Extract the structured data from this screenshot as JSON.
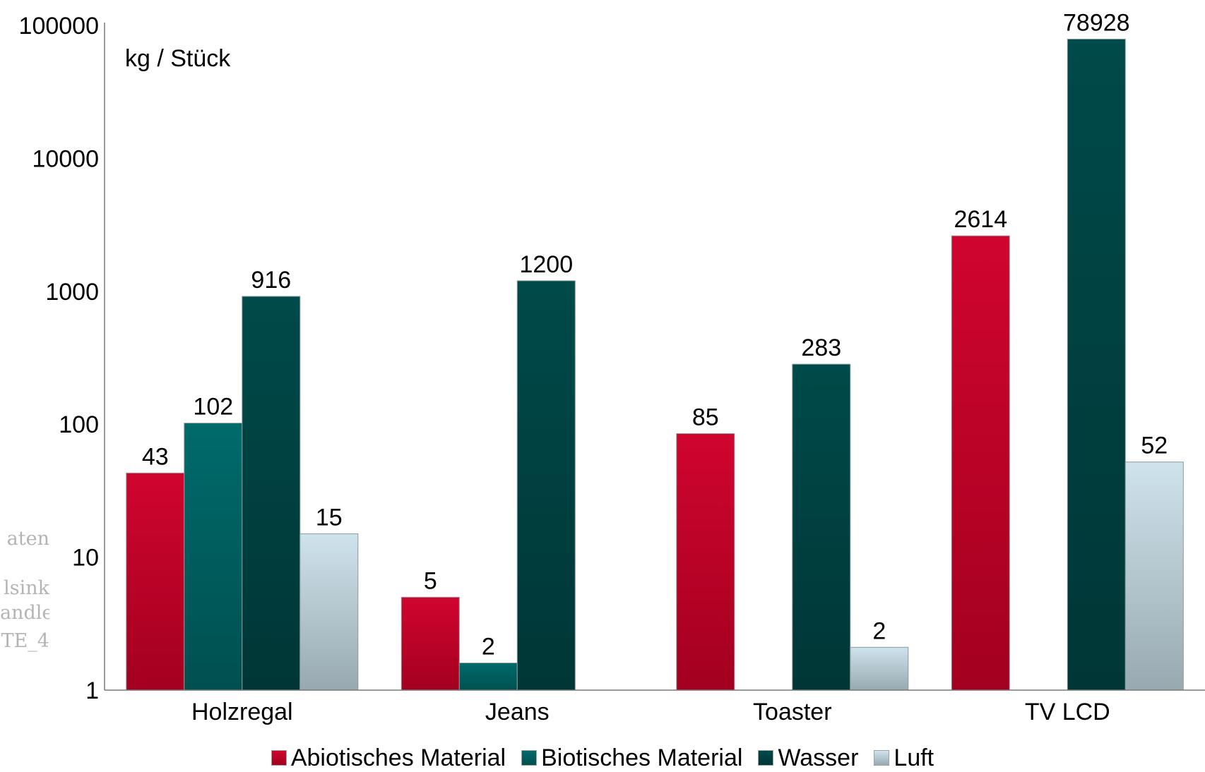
{
  "chart_data": {
    "type": "bar",
    "unit_label": "kg / Stück",
    "categories": [
      "Holzregal",
      "Jeans",
      "Toaster",
      "TV LCD"
    ],
    "yscale": "log",
    "ylim": [
      1,
      100000
    ],
    "yticks": [
      1,
      10,
      100,
      1000,
      10000,
      100000
    ],
    "ytick_labels": [
      "1",
      "10",
      "100",
      "1000",
      "10000",
      "100000"
    ],
    "grid": false,
    "legend_position": "bottom",
    "series": [
      {
        "name": "Abiotisches Material",
        "color": "#d0052e",
        "color_dark": "#a3001f",
        "values": [
          43,
          5,
          85,
          2614
        ],
        "labels": [
          "43",
          "5",
          "85",
          "2614"
        ]
      },
      {
        "name": "Biotisches Material",
        "color": "#006a6b",
        "color_dark": "#00504f",
        "values": [
          102,
          1.6,
          null,
          null
        ],
        "labels": [
          "102",
          "2",
          "",
          ""
        ]
      },
      {
        "name": "Wasser",
        "color": "#004a4a",
        "color_dark": "#003636",
        "values": [
          916,
          1200,
          283,
          78928
        ],
        "labels": [
          "916",
          "1200",
          "283",
          "78928"
        ]
      },
      {
        "name": "Luft",
        "color": "#cfe3ec",
        "color_dark": "#98a9b0",
        "values": [
          15,
          null,
          2.1,
          52
        ],
        "labels": [
          "15",
          "",
          "2",
          "52"
        ]
      }
    ]
  },
  "side_notes": [
    "aten",
    "lsink",
    "andle",
    "TE_4"
  ]
}
